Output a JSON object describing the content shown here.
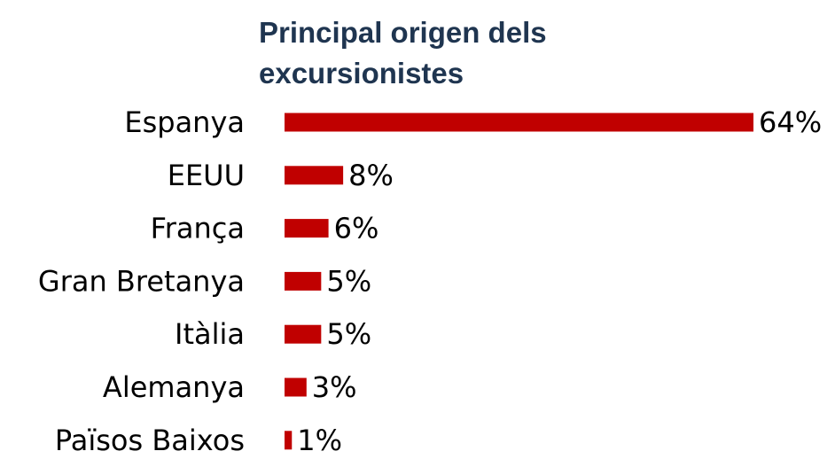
{
  "chart_data": {
    "type": "bar",
    "orientation": "horizontal",
    "title": "Principal origen dels excursionistes",
    "categories": [
      "Espanya",
      "EEUU",
      "França",
      "Gran Bretanya",
      "Itàlia",
      "Alemanya",
      "Països Baixos"
    ],
    "values": [
      64,
      8,
      6,
      5,
      5,
      3,
      1
    ],
    "value_labels": [
      "64%",
      "8%",
      "6%",
      "5%",
      "5%",
      "3%",
      "1%"
    ],
    "color": "#c00000"
  }
}
